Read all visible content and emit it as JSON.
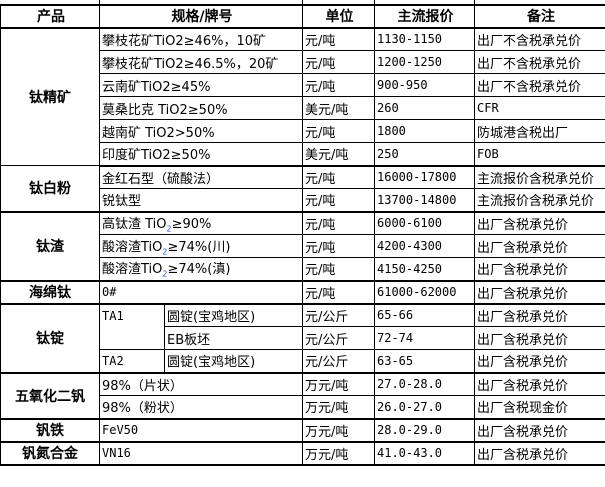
{
  "header": {
    "product": "产品",
    "spec": "规格/牌号",
    "unit": "单位",
    "price": "主流报价",
    "note": "备注"
  },
  "groups": {
    "ti_concentrate": {
      "name": "钛精矿",
      "rows": [
        {
          "spec": "攀枝花矿TiO2≥46%，10矿",
          "unit": "元/吨",
          "price": "1130-1150",
          "note": "出厂不含税承兑价"
        },
        {
          "spec": "攀枝花矿TiO2≥46.5%，20矿",
          "unit": "元/吨",
          "price": "1200-1250",
          "note": "出厂不含税承兑价"
        },
        {
          "spec": "云南矿TiO2≥45%",
          "unit": "元/吨",
          "price": "900-950",
          "note": "出厂不含税承兑价"
        },
        {
          "spec": "莫桑比克 TiO2≥50%",
          "unit": "美元/吨",
          "price": "260",
          "note": "CFR"
        },
        {
          "spec": "越南矿 TiO2>50%",
          "unit": "元/吨",
          "price": "1800",
          "note": "防城港含税出厂"
        },
        {
          "spec": "印度矿TiO2≥50%",
          "unit": "美元/吨",
          "price": "250",
          "note": "FOB"
        }
      ]
    },
    "ti_dioxide": {
      "name": "钛白粉",
      "rows": [
        {
          "spec": "金红石型（硫酸法）",
          "unit": "元/吨",
          "price": "16000-17800",
          "note": "主流报价含税承兑价"
        },
        {
          "spec": "锐钛型",
          "unit": "元/吨",
          "price": "13700-14800",
          "note": "主流报价含税承兑价"
        }
      ]
    },
    "ti_slag": {
      "name": "钛渣",
      "rows": [
        {
          "spec_a": "高钛渣 TiO",
          "spec_sub": "2",
          "spec_b": "≥90%",
          "unit": "元/吨",
          "price": "6000-6100",
          "note": "出厂含税承兑价"
        },
        {
          "spec_a": "酸溶渣TiO",
          "spec_sub": "2",
          "spec_b": "≥74%(川)",
          "unit": "元/吨",
          "price": "4200-4300",
          "note": "出厂含税承兑价"
        },
        {
          "spec_a": "酸溶渣TiO",
          "spec_sub": "2",
          "spec_b": "≥74%(滇)",
          "unit": "元/吨",
          "price": "4150-4250",
          "note": "出厂含税承兑价"
        }
      ]
    },
    "ti_sponge": {
      "name": "海绵钛",
      "rows": [
        {
          "spec": "0#",
          "unit": "元/吨",
          "price": "61000-62000",
          "note": "出厂含税承兑价"
        }
      ]
    },
    "ti_ingot": {
      "name": "钛锭",
      "grade1": "TA1",
      "grade2": "TA2",
      "rows": [
        {
          "spec": "圆锭(宝鸡地区)",
          "unit": "元/公斤",
          "price": "65-66",
          "note": "出厂含税承兑价"
        },
        {
          "spec": "EB板坯",
          "unit": "元/公斤",
          "price": "72-74",
          "note": "出厂含税承兑价"
        },
        {
          "spec": "圆锭(宝鸡地区)",
          "unit": "元/公斤",
          "price": "63-65",
          "note": "出厂含税承兑价"
        }
      ]
    },
    "v2o5": {
      "name": "五氧化二钒",
      "rows": [
        {
          "spec": "98%（片状）",
          "unit": "万元/吨",
          "price": "27.0-28.0",
          "note": "出厂含税承兑价"
        },
        {
          "spec": "98%（粉状）",
          "unit": "万元/吨",
          "price": "26.0-27.0",
          "note": "出厂含税现金价"
        }
      ]
    },
    "fev": {
      "name": "钒铁",
      "rows": [
        {
          "spec": "FeV50",
          "unit": "万元/吨",
          "price": "28.0-29.0",
          "note": "出厂含税承兑价"
        }
      ]
    },
    "vn": {
      "name": "钒氮合金",
      "rows": [
        {
          "spec": "VN16",
          "unit": "万元/吨",
          "price": "41.0-43.0",
          "note": "出厂含税承兑价"
        }
      ]
    }
  }
}
